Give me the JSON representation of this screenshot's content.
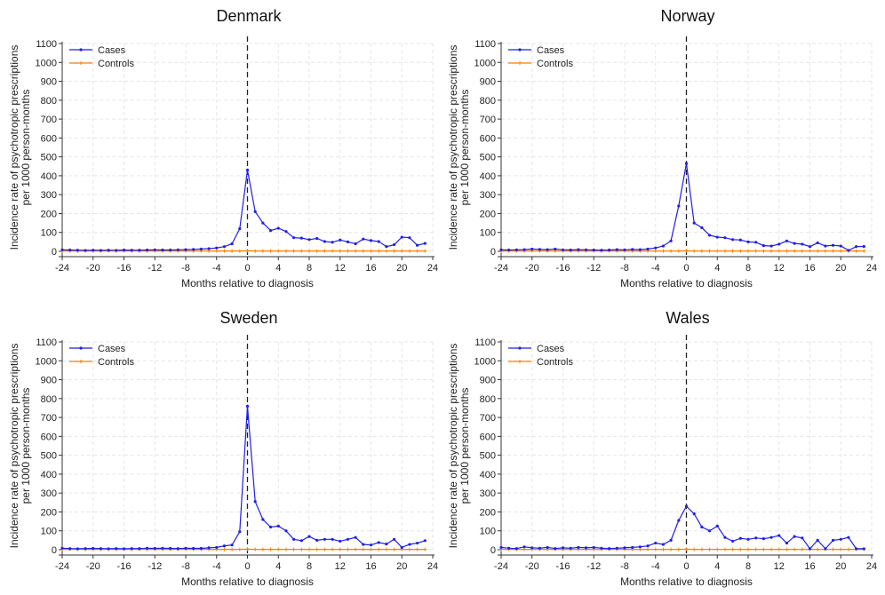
{
  "chart_data": [
    {
      "type": "line",
      "title": "Denmark",
      "xlabel": "Months relative to diagnosis",
      "ylabel_line1": "Incidence rate of psychotropic prescriptions",
      "ylabel_line2": "per 1000 person-months",
      "xlim": [
        -24,
        24
      ],
      "ylim": [
        0,
        1100
      ],
      "xticks": [
        -24,
        -20,
        -16,
        -12,
        -8,
        -4,
        0,
        4,
        8,
        12,
        16,
        20,
        24
      ],
      "yticks": [
        0,
        100,
        200,
        300,
        400,
        500,
        600,
        700,
        800,
        900,
        1000,
        1100
      ],
      "legend": [
        "Cases",
        "Controls"
      ],
      "reference_line_x": 0,
      "x": [
        -24,
        -23,
        -22,
        -21,
        -20,
        -19,
        -18,
        -17,
        -16,
        -15,
        -14,
        -13,
        -12,
        -11,
        -10,
        -9,
        -8,
        -7,
        -6,
        -5,
        -4,
        -3,
        -2,
        -1,
        0,
        1,
        2,
        3,
        4,
        5,
        6,
        7,
        8,
        9,
        10,
        11,
        12,
        13,
        14,
        15,
        16,
        17,
        18,
        19,
        20,
        21,
        22,
        23
      ],
      "series": [
        {
          "name": "Cases",
          "color": "#1f1fe6",
          "values": [
            8,
            7,
            6,
            5,
            6,
            5,
            6,
            5,
            7,
            6,
            6,
            7,
            8,
            7,
            7,
            8,
            9,
            10,
            12,
            14,
            18,
            25,
            40,
            120,
            430,
            210,
            150,
            110,
            122,
            105,
            72,
            70,
            62,
            68,
            52,
            48,
            60,
            50,
            40,
            65,
            57,
            52,
            25,
            35,
            75,
            72,
            32,
            42
          ]
        },
        {
          "name": "Controls",
          "color": "#ff8000",
          "values": [
            2,
            2,
            2,
            2,
            2,
            2,
            2,
            2,
            2,
            2,
            2,
            2,
            2,
            2,
            2,
            2,
            2,
            2,
            2,
            2,
            2,
            2,
            2,
            2,
            3,
            2,
            2,
            2,
            2,
            2,
            2,
            2,
            2,
            2,
            2,
            2,
            2,
            2,
            2,
            2,
            2,
            2,
            2,
            2,
            2,
            2,
            2,
            2
          ]
        }
      ]
    },
    {
      "type": "line",
      "title": "Norway",
      "xlabel": "Months relative to diagnosis",
      "ylabel_line1": "Incidence rate of psychotropic prescriptions",
      "ylabel_line2": "per 1000 person-months",
      "xlim": [
        -24,
        24
      ],
      "ylim": [
        0,
        1100
      ],
      "xticks": [
        -24,
        -20,
        -16,
        -12,
        -8,
        -4,
        0,
        4,
        8,
        12,
        16,
        20,
        24
      ],
      "yticks": [
        0,
        100,
        200,
        300,
        400,
        500,
        600,
        700,
        800,
        900,
        1000,
        1100
      ],
      "legend": [
        "Cases",
        "Controls"
      ],
      "reference_line_x": 0,
      "x": [
        -24,
        -23,
        -22,
        -21,
        -20,
        -19,
        -18,
        -17,
        -16,
        -15,
        -14,
        -13,
        -12,
        -11,
        -10,
        -9,
        -8,
        -7,
        -6,
        -5,
        -4,
        -3,
        -2,
        -1,
        0,
        1,
        2,
        3,
        4,
        5,
        6,
        7,
        8,
        9,
        10,
        11,
        12,
        13,
        14,
        15,
        16,
        17,
        18,
        19,
        20,
        21,
        22,
        23
      ],
      "series": [
        {
          "name": "Cases",
          "color": "#1f1fe6",
          "values": [
            8,
            7,
            8,
            9,
            12,
            10,
            9,
            12,
            8,
            7,
            9,
            8,
            7,
            6,
            7,
            9,
            8,
            10,
            9,
            12,
            18,
            28,
            55,
            240,
            465,
            150,
            125,
            85,
            75,
            72,
            62,
            60,
            50,
            48,
            30,
            28,
            38,
            55,
            42,
            38,
            25,
            45,
            28,
            32,
            28,
            5,
            25,
            26
          ]
        },
        {
          "name": "Controls",
          "color": "#ff8000",
          "values": [
            2,
            2,
            2,
            2,
            2,
            2,
            2,
            2,
            2,
            2,
            2,
            2,
            2,
            2,
            2,
            2,
            2,
            2,
            2,
            2,
            2,
            2,
            2,
            2,
            3,
            2,
            2,
            2,
            2,
            2,
            2,
            2,
            2,
            2,
            2,
            2,
            2,
            2,
            2,
            2,
            2,
            2,
            2,
            2,
            2,
            2,
            2,
            2
          ]
        }
      ]
    },
    {
      "type": "line",
      "title": "Sweden",
      "xlabel": "Months relative to diagnosis",
      "ylabel_line1": "Incidence rate of psychotropic prescriptions",
      "ylabel_line2": "per 1000 person-months",
      "xlim": [
        -24,
        24
      ],
      "ylim": [
        0,
        1100
      ],
      "xticks": [
        -24,
        -20,
        -16,
        -12,
        -8,
        -4,
        0,
        4,
        8,
        12,
        16,
        20,
        24
      ],
      "yticks": [
        0,
        100,
        200,
        300,
        400,
        500,
        600,
        700,
        800,
        900,
        1000,
        1100
      ],
      "legend": [
        "Cases",
        "Controls"
      ],
      "reference_line_x": 0,
      "x": [
        -24,
        -23,
        -22,
        -21,
        -20,
        -19,
        -18,
        -17,
        -16,
        -15,
        -14,
        -13,
        -12,
        -11,
        -10,
        -9,
        -8,
        -7,
        -6,
        -5,
        -4,
        -3,
        -2,
        -1,
        0,
        1,
        2,
        3,
        4,
        5,
        6,
        7,
        8,
        9,
        10,
        11,
        12,
        13,
        14,
        15,
        16,
        17,
        18,
        19,
        20,
        21,
        22,
        23
      ],
      "series": [
        {
          "name": "Cases",
          "color": "#1f1fe6",
          "values": [
            8,
            6,
            5,
            6,
            7,
            6,
            5,
            6,
            5,
            6,
            6,
            8,
            7,
            8,
            7,
            6,
            8,
            7,
            7,
            10,
            12,
            20,
            25,
            95,
            760,
            255,
            160,
            120,
            125,
            100,
            55,
            48,
            70,
            50,
            55,
            55,
            45,
            55,
            65,
            28,
            25,
            38,
            30,
            55,
            12,
            28,
            35,
            48
          ]
        },
        {
          "name": "Controls",
          "color": "#ff8000",
          "values": [
            2,
            2,
            2,
            2,
            2,
            2,
            2,
            2,
            2,
            2,
            2,
            2,
            2,
            2,
            2,
            2,
            2,
            2,
            2,
            2,
            2,
            2,
            2,
            2,
            3,
            2,
            2,
            2,
            2,
            2,
            2,
            2,
            2,
            2,
            2,
            2,
            2,
            2,
            2,
            2,
            2,
            2,
            2,
            2,
            2,
            2,
            2,
            2
          ]
        }
      ]
    },
    {
      "type": "line",
      "title": "Wales",
      "xlabel": "Months relative to diagnosis",
      "ylabel_line1": "Incidence rate of psychotropic prescriptions",
      "ylabel_line2": "per 1000 person-months",
      "xlim": [
        -24,
        24
      ],
      "ylim": [
        0,
        1100
      ],
      "xticks": [
        -24,
        -20,
        -16,
        -12,
        -8,
        -4,
        0,
        4,
        8,
        12,
        16,
        20,
        24
      ],
      "yticks": [
        0,
        100,
        200,
        300,
        400,
        500,
        600,
        700,
        800,
        900,
        1000,
        1100
      ],
      "legend": [
        "Cases",
        "Controls"
      ],
      "reference_line_x": 0,
      "x": [
        -24,
        -23,
        -22,
        -21,
        -20,
        -19,
        -18,
        -17,
        -16,
        -15,
        -14,
        -13,
        -12,
        -11,
        -10,
        -9,
        -8,
        -7,
        -6,
        -5,
        -4,
        -3,
        -2,
        -1,
        0,
        1,
        2,
        3,
        4,
        5,
        6,
        7,
        8,
        9,
        10,
        11,
        12,
        13,
        14,
        15,
        16,
        17,
        18,
        19,
        20,
        21,
        22,
        23
      ],
      "series": [
        {
          "name": "Cases",
          "color": "#1f1fe6",
          "values": [
            12,
            8,
            6,
            15,
            10,
            8,
            12,
            6,
            10,
            8,
            12,
            10,
            12,
            8,
            6,
            8,
            10,
            12,
            15,
            20,
            35,
            28,
            50,
            155,
            230,
            190,
            120,
            100,
            125,
            65,
            45,
            60,
            55,
            62,
            58,
            65,
            75,
            35,
            70,
            62,
            5,
            50,
            5,
            50,
            55,
            65,
            5,
            5
          ]
        },
        {
          "name": "Controls",
          "color": "#ff8000",
          "values": [
            2,
            2,
            2,
            2,
            2,
            2,
            2,
            2,
            2,
            2,
            2,
            2,
            2,
            2,
            2,
            2,
            2,
            2,
            2,
            2,
            2,
            2,
            2,
            2,
            3,
            2,
            2,
            2,
            2,
            2,
            2,
            2,
            2,
            2,
            2,
            2,
            2,
            2,
            2,
            2,
            2,
            2,
            2,
            2,
            2,
            2,
            2,
            2
          ]
        }
      ]
    }
  ]
}
